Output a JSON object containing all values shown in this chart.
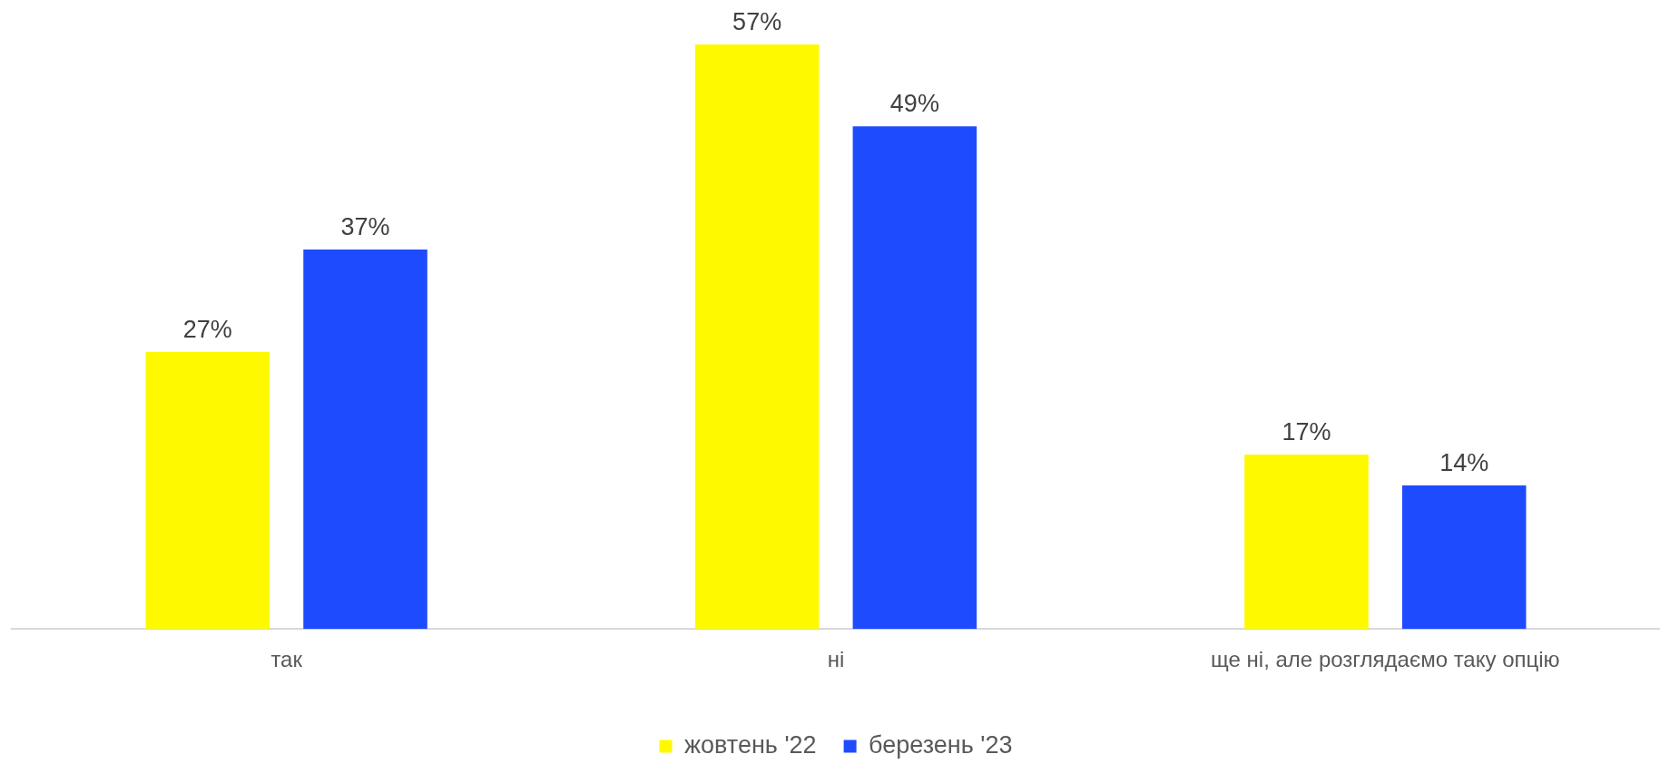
{
  "chart_data": {
    "type": "bar",
    "categories": [
      "так",
      "ні",
      "ще ні, але розглядаємо таку опцію"
    ],
    "series": [
      {
        "name": "жовтень '22",
        "color": "#fff900",
        "values": [
          27,
          57,
          17
        ],
        "value_labels": [
          "27%",
          "57%",
          "17%"
        ]
      },
      {
        "name": "березень '23",
        "color": "#1f4bff",
        "values": [
          37,
          49,
          14
        ],
        "value_labels": [
          "37%",
          "49%",
          "14%"
        ]
      }
    ],
    "legend": "bottom",
    "grid": false
  }
}
